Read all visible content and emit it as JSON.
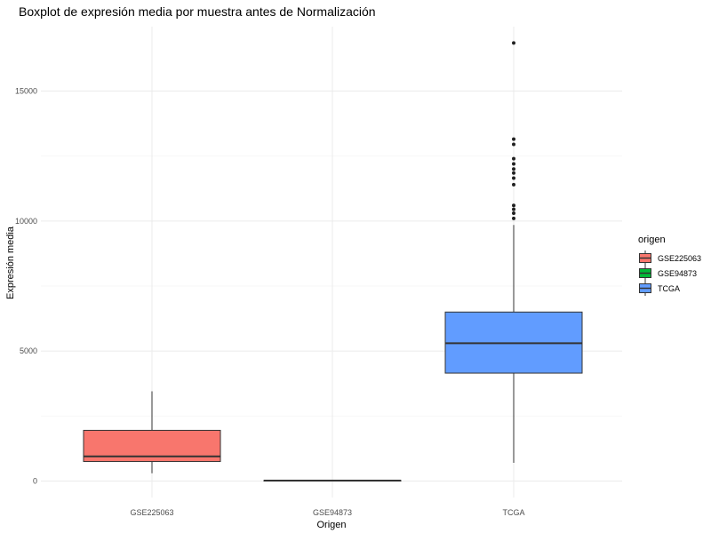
{
  "chart_data": {
    "type": "boxplot",
    "title": "Boxplot de expresión media por muestra antes de Normalización",
    "xlabel": "Origen",
    "ylabel": "Expresión media",
    "ylim": [
      -100,
      17800
    ],
    "yticks": [
      0,
      5000,
      10000,
      15000
    ],
    "ytick_labels": [
      "0",
      "5000",
      "10000",
      "15000"
    ],
    "grid": true,
    "legend": {
      "title": "origen",
      "position": "right",
      "entries": [
        "GSE225063",
        "GSE94873",
        "TCGA"
      ]
    },
    "categories": [
      "GSE225063",
      "GSE94873",
      "TCGA"
    ],
    "series": [
      {
        "category": "GSE225063",
        "color": "#F8766D",
        "min": 300,
        "q1": 750,
        "median": 950,
        "q3": 1950,
        "max": 3450,
        "outliers": []
      },
      {
        "category": "GSE94873",
        "color": "#00BA38",
        "min": 0,
        "q1": 5,
        "median": 15,
        "q3": 25,
        "max": 40,
        "outliers": []
      },
      {
        "category": "TCGA",
        "color": "#619CFF",
        "min": 700,
        "q1": 4150,
        "median": 5300,
        "q3": 6500,
        "max": 9850,
        "outliers": [
          10100,
          10300,
          10450,
          10600,
          11400,
          11650,
          11850,
          12000,
          12200,
          12400,
          12950,
          13150,
          16850
        ]
      }
    ]
  }
}
